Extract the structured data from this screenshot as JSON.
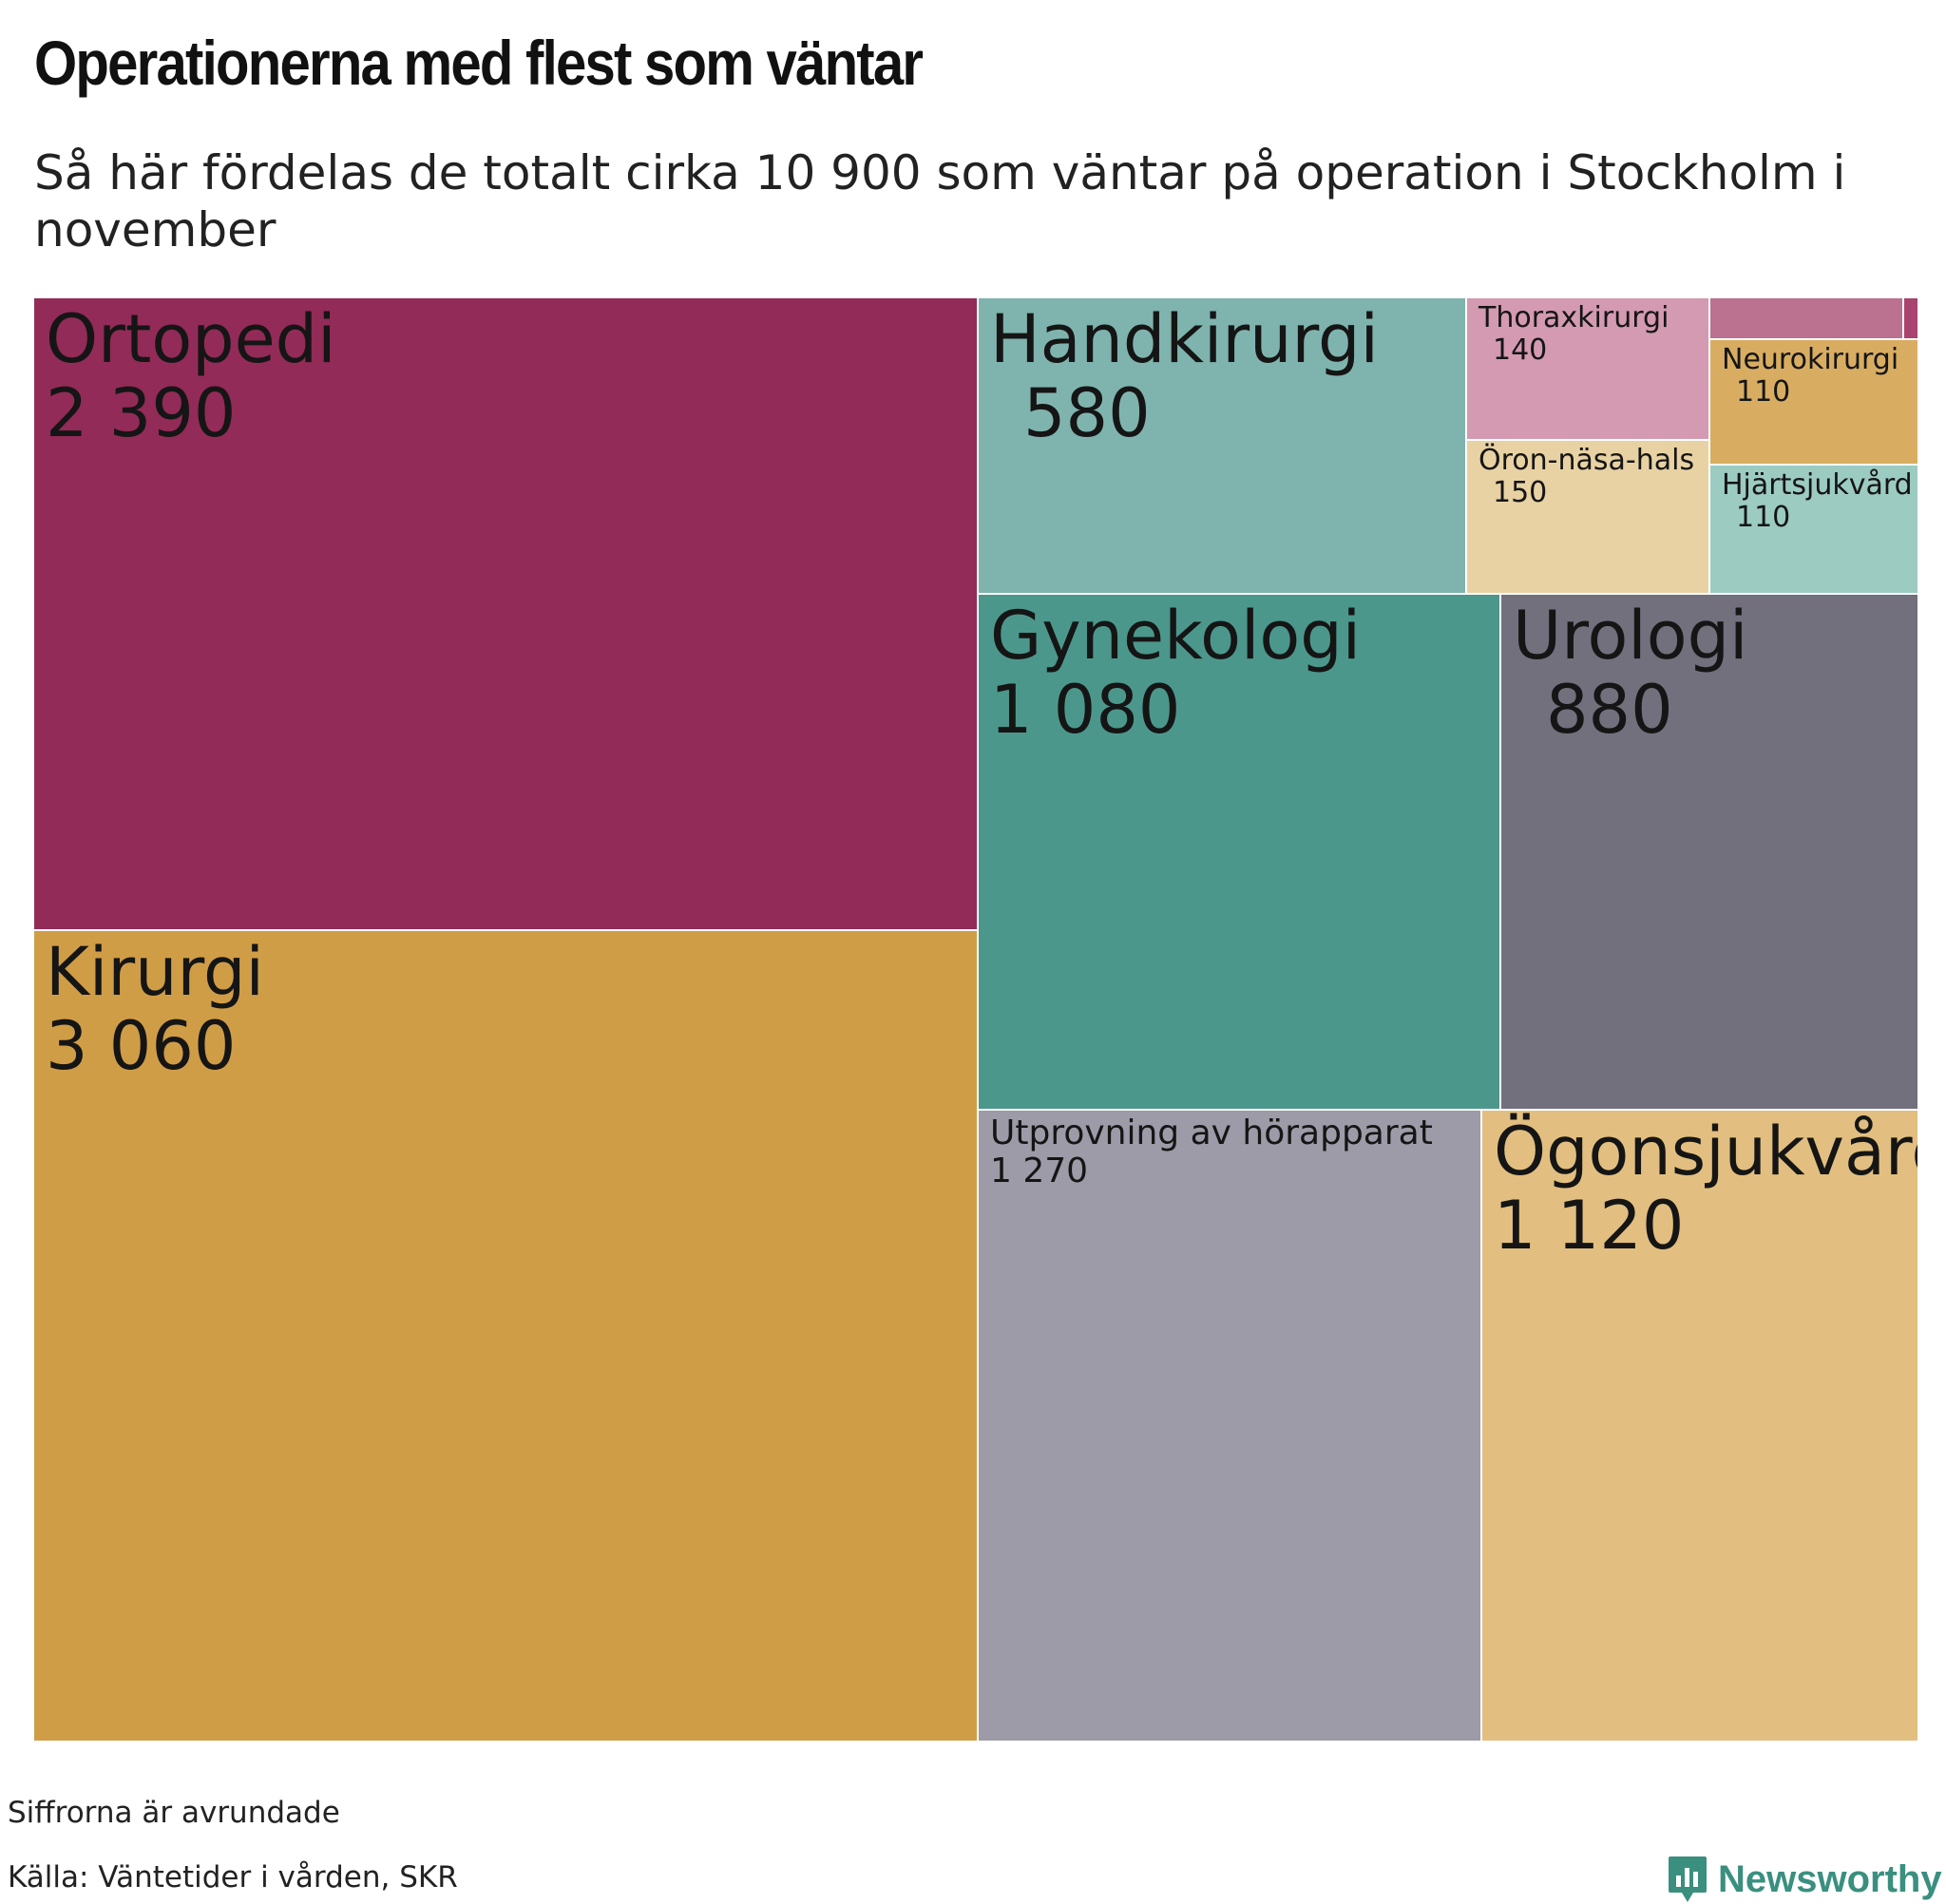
{
  "title": "Operationerna med flest som väntar",
  "subtitle": "Så här fördelas de totalt cirka 10 900 som väntar på operation i Stockholm i november",
  "footnote": "Siffrorna är avrundade",
  "source": "Källa: Väntetider i vården, SKR",
  "brand": {
    "name": "Newsworthy",
    "icon": "newsworthy-logo-icon",
    "color": "#3a8f7f"
  },
  "chart_data": {
    "type": "treemap",
    "title": "Operationerna med flest som väntar",
    "subtitle": "Så här fördelas de totalt cirka 10 900 som väntar på operation i Stockholm i november",
    "series": [
      {
        "name": "Ortopedi",
        "value_label": "2 390",
        "value": 2390,
        "color": "#922b57"
      },
      {
        "name": "Kirurgi",
        "value_label": "3 060",
        "value": 3060,
        "color": "#d09d47"
      },
      {
        "name": "Handkirurgi",
        "value_label": "580",
        "value": 580,
        "color": "#7fb4ae"
      },
      {
        "name": "Thoraxkirurgi",
        "value_label": "140",
        "value": 140,
        "color": "#d39ab1"
      },
      {
        "name": "Öron-näsa-hals",
        "value_label": "150",
        "value": 150,
        "color": "#e8d2a3"
      },
      {
        "name": "Neurokirurgi",
        "value_label": "110",
        "value": 110,
        "color": "#d8ad62"
      },
      {
        "name": "Hjärtsjukvård",
        "value_label": "110",
        "value": 110,
        "color": "#9ccbc2"
      },
      {
        "name": "",
        "value_label": "",
        "value": null,
        "color": "#bb7190"
      },
      {
        "name": "",
        "value_label": "",
        "value": null,
        "color": "#a8446f"
      },
      {
        "name": "Gynekologi",
        "value_label": "1 080",
        "value": 1080,
        "color": "#4c978c"
      },
      {
        "name": "Urologi",
        "value_label": "880",
        "value": 880,
        "color": "#72707d"
      },
      {
        "name": "Utprovning av hörapparat",
        "value_label": "1 270",
        "value": 1270,
        "color": "#9d9ba7"
      },
      {
        "name": "Ögonsjukvård",
        "value_label": "1 120",
        "value": 1120,
        "color": "#e2bf80"
      }
    ]
  }
}
